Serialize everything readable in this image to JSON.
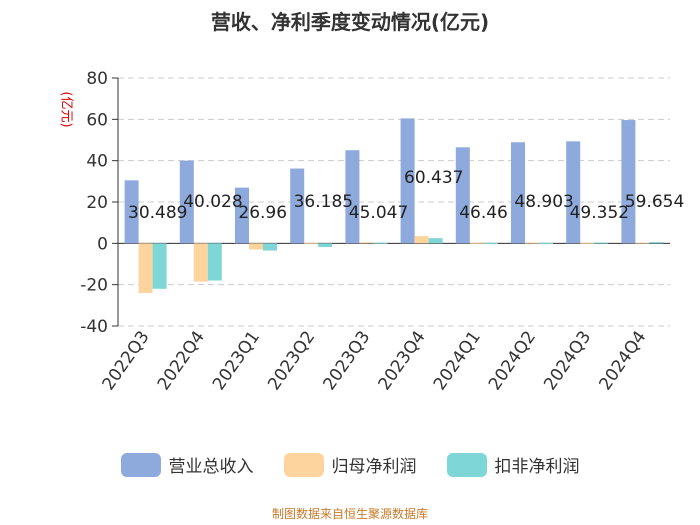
{
  "chart_data": {
    "type": "bar",
    "title": "营收、净利季度变动情况(亿元)",
    "ylabel": "(亿元)",
    "xlabel": "",
    "ylim": [
      -40,
      80
    ],
    "yticks": [
      80,
      60,
      40,
      20,
      0,
      -20,
      -40
    ],
    "categories": [
      "2022Q3",
      "2022Q4",
      "2023Q1",
      "2023Q2",
      "2023Q3",
      "2023Q4",
      "2024Q1",
      "2024Q2",
      "2024Q3",
      "2024Q4"
    ],
    "series": [
      {
        "name": "营业总收入",
        "color": "#8eaadc",
        "values": [
          30.489,
          40.028,
          26.96,
          36.185,
          45.047,
          60.437,
          46.46,
          48.903,
          49.352,
          59.654
        ],
        "labels": [
          "30.489",
          "40.028",
          "26.96",
          "36.185",
          "45.047",
          "60.437",
          "46.46",
          "48.903",
          "49.352",
          "59.654"
        ]
      },
      {
        "name": "归母净利润",
        "color": "#fdd49e",
        "values": [
          -24.0,
          -18.5,
          -3.0,
          0.3,
          0.5,
          3.5,
          0.3,
          0.4,
          0.3,
          0.4
        ]
      },
      {
        "name": "扣非净利润",
        "color": "#7fd6d6",
        "values": [
          -22.0,
          -18.0,
          -3.5,
          -1.8,
          0.3,
          2.5,
          0.2,
          0.2,
          0.4,
          0.6
        ]
      }
    ],
    "grid": true,
    "legend_position": "bottom"
  },
  "source": "制图数据来自恒生聚源数据库"
}
